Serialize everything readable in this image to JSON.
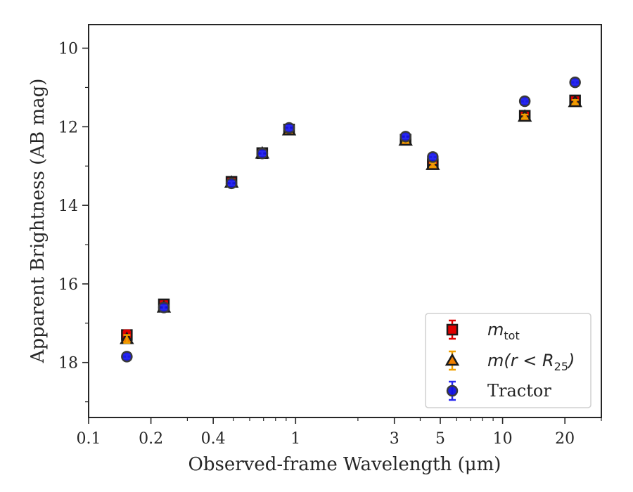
{
  "chart_data": {
    "type": "scatter",
    "xlabel": "Observed-frame Wavelength (μm)",
    "ylabel": "Apparent Brightness (AB mag)",
    "xscale": "log",
    "xlim": [
      0.1,
      30
    ],
    "ylim": [
      19.4,
      9.4
    ],
    "y_inverted": true,
    "xticks": [
      {
        "value": 0.1,
        "label": "0.1"
      },
      {
        "value": 0.2,
        "label": "0.2"
      },
      {
        "value": 0.4,
        "label": "0.4"
      },
      {
        "value": 1,
        "label": "1"
      },
      {
        "value": 3,
        "label": "3"
      },
      {
        "value": 5,
        "label": "5"
      },
      {
        "value": 10,
        "label": "10"
      },
      {
        "value": 20,
        "label": "20"
      }
    ],
    "yticks": [
      {
        "value": 10,
        "label": "10"
      },
      {
        "value": 12,
        "label": "12"
      },
      {
        "value": 14,
        "label": "14"
      },
      {
        "value": 16,
        "label": "16"
      },
      {
        "value": 18,
        "label": "18"
      }
    ],
    "grid": false,
    "legend_position": "lower-right",
    "series": [
      {
        "name": "m_tot",
        "legend_main": "m",
        "legend_sub": "tot",
        "marker": "square",
        "color": "#e00000",
        "errorbar_color": "#e00000",
        "points": [
          {
            "x": 0.153,
            "y": 17.3,
            "err": 0.12
          },
          {
            "x": 0.231,
            "y": 16.52,
            "err": 0.06
          },
          {
            "x": 0.49,
            "y": 13.4,
            "err": 0.05
          },
          {
            "x": 0.69,
            "y": 12.67,
            "err": 0.05
          },
          {
            "x": 0.93,
            "y": 12.07,
            "err": 0.05
          },
          {
            "x": 3.4,
            "y": 12.33,
            "err": 0.05
          },
          {
            "x": 4.6,
            "y": 12.95,
            "err": 0.05
          },
          {
            "x": 12.8,
            "y": 11.72,
            "err": 0.05
          },
          {
            "x": 22.4,
            "y": 11.33,
            "err": 0.06
          }
        ]
      },
      {
        "name": "m(r<R25)",
        "legend_main": "m(r < R",
        "legend_sub": "25",
        "legend_tail": ")",
        "marker": "triangle",
        "color": "#f08000",
        "errorbar_color": "#f0a000",
        "points": [
          {
            "x": 0.153,
            "y": 17.4,
            "err": 0.1
          },
          {
            "x": 0.231,
            "y": 16.6,
            "err": 0.06
          },
          {
            "x": 0.49,
            "y": 13.42,
            "err": 0.05
          },
          {
            "x": 0.69,
            "y": 12.68,
            "err": 0.05
          },
          {
            "x": 0.93,
            "y": 12.09,
            "err": 0.05
          },
          {
            "x": 3.4,
            "y": 12.35,
            "err": 0.05
          },
          {
            "x": 4.6,
            "y": 12.97,
            "err": 0.05
          },
          {
            "x": 12.8,
            "y": 11.74,
            "err": 0.05
          },
          {
            "x": 22.4,
            "y": 11.37,
            "err": 0.05
          }
        ]
      },
      {
        "name": "Tractor",
        "legend_main": "Tractor",
        "marker": "circle",
        "color": "#1010e0",
        "errorbar_color": "#2828f0",
        "points": [
          {
            "x": 0.153,
            "y": 17.85,
            "err": 0.05
          },
          {
            "x": 0.231,
            "y": 16.6,
            "err": 0.05
          },
          {
            "x": 0.49,
            "y": 13.44,
            "err": 0.05
          },
          {
            "x": 0.69,
            "y": 12.68,
            "err": 0.05
          },
          {
            "x": 0.93,
            "y": 12.03,
            "err": 0.05
          },
          {
            "x": 3.4,
            "y": 12.25,
            "err": 0.05
          },
          {
            "x": 4.6,
            "y": 12.77,
            "err": 0.05
          },
          {
            "x": 12.8,
            "y": 11.35,
            "err": 0.05
          },
          {
            "x": 22.4,
            "y": 10.87,
            "err": 0.05
          }
        ]
      }
    ]
  }
}
